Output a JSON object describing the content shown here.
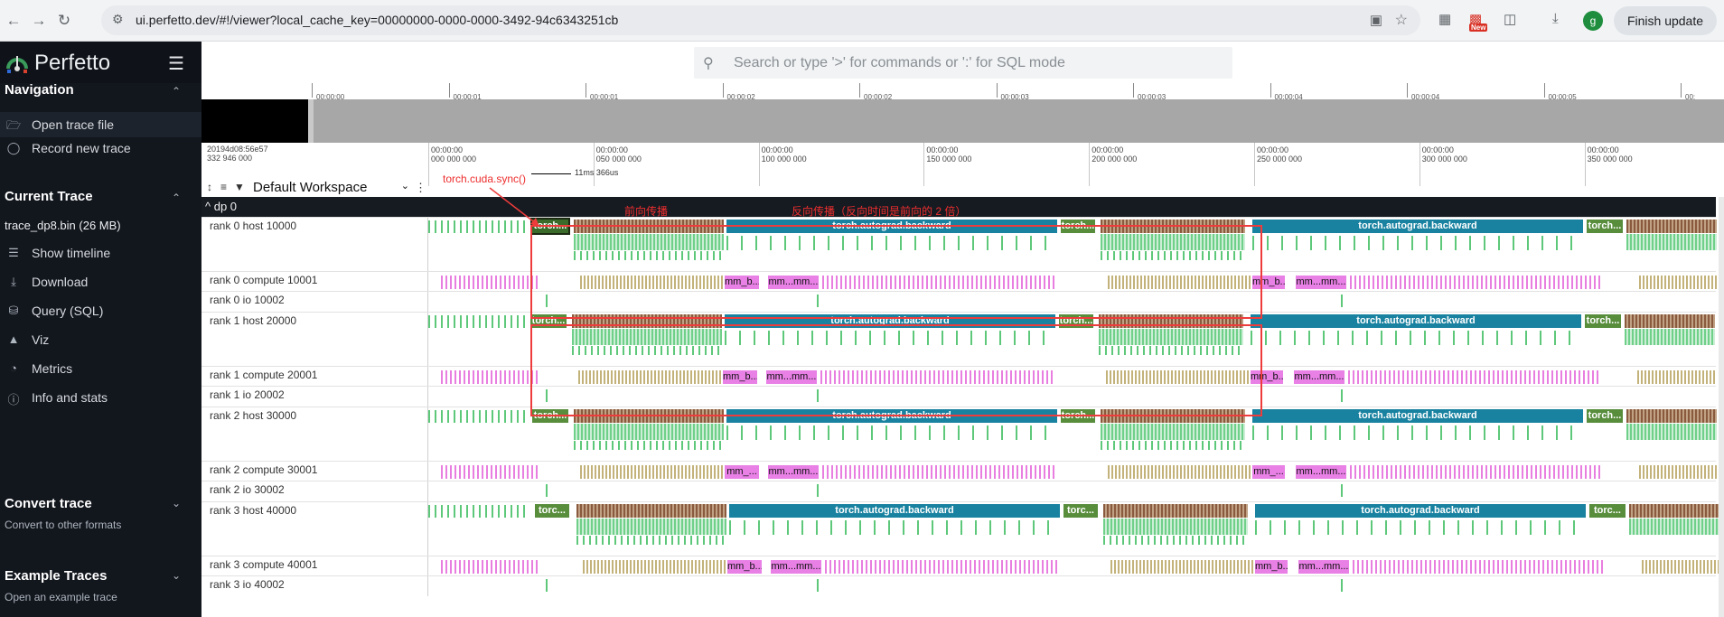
{
  "browser": {
    "url": "ui.perfetto.dev/#!/viewer?local_cache_key=00000000-0000-0000-3492-94c6343251cb",
    "new_badge": "New",
    "profile_initial": "g",
    "finish_update": "Finish update"
  },
  "sidebar": {
    "brand": "Perfetto",
    "navigation": {
      "title": "Navigation",
      "items": [
        {
          "label": "Open trace file",
          "icon": "folder-open-icon"
        },
        {
          "label": "Record new trace",
          "icon": "record-icon"
        }
      ]
    },
    "current_trace": {
      "title": "Current Trace",
      "trace_name": "trace_dp8.bin (26 MB)",
      "items": [
        {
          "label": "Show timeline",
          "icon": "timeline-icon"
        },
        {
          "label": "Download",
          "icon": "download-icon"
        },
        {
          "label": "Query (SQL)",
          "icon": "database-icon"
        },
        {
          "label": "Viz",
          "icon": "chart-icon"
        },
        {
          "label": "Metrics",
          "icon": "metrics-icon"
        },
        {
          "label": "Info and stats",
          "icon": "info-icon"
        }
      ]
    },
    "convert_trace": {
      "title": "Convert trace",
      "subtitle": "Convert to other formats"
    },
    "example_traces": {
      "title": "Example Traces",
      "subtitle": "Open an example trace"
    }
  },
  "search": {
    "placeholder": "Search or type '>' for commands or ':' for SQL mode"
  },
  "overview": {
    "ticks": [
      "00:00:00",
      "00:00:01",
      "00:00:01",
      "00:00:02",
      "00:00:02",
      "00:00:03",
      "00:00:03",
      "00:00:04",
      "00:00:04",
      "00:00:05",
      "00:"
    ]
  },
  "time_info": {
    "line1": "20194d08:56e57",
    "line2": "332 946 000"
  },
  "ruler": {
    "ticks": [
      {
        "l1": "00:00:00",
        "l2": "000 000 000"
      },
      {
        "l1": "00:00:00",
        "l2": "050 000 000"
      },
      {
        "l1": "00:00:00",
        "l2": "100 000 000"
      },
      {
        "l1": "00:00:00",
        "l2": "150 000 000"
      },
      {
        "l1": "00:00:00",
        "l2": "200 000 000"
      },
      {
        "l1": "00:00:00",
        "l2": "250 000 000"
      },
      {
        "l1": "00:00:00",
        "l2": "300 000 000"
      },
      {
        "l1": "00:00:00",
        "l2": "350 000 000"
      }
    ]
  },
  "workspace": {
    "label": "Default Workspace"
  },
  "measure": {
    "label": "11ms 366us"
  },
  "group": {
    "label": "^ dp 0"
  },
  "tracks": [
    {
      "name": "rank 0 host 10000",
      "kind": "host"
    },
    {
      "name": "rank 0 compute 10001",
      "kind": "compute"
    },
    {
      "name": "rank 0 io 10002",
      "kind": "io"
    },
    {
      "name": "rank 1 host 20000",
      "kind": "host"
    },
    {
      "name": "rank 1 compute 20001",
      "kind": "compute"
    },
    {
      "name": "rank 1 io 20002",
      "kind": "io"
    },
    {
      "name": "rank 2 host 30000",
      "kind": "host"
    },
    {
      "name": "rank 2 compute 30001",
      "kind": "compute"
    },
    {
      "name": "rank 2 io 30002",
      "kind": "io"
    },
    {
      "name": "rank 3 host 40000",
      "kind": "host"
    },
    {
      "name": "rank 3 compute 40001",
      "kind": "compute"
    },
    {
      "name": "rank 3 io 40002",
      "kind": "io"
    }
  ],
  "slices": {
    "torch_short": "torch...",
    "torch_short2": "torc...",
    "backward": "torch.autograd.backward",
    "mm_b": "mm_b...",
    "mm_mm": "mm...mm...",
    "mm_short": "mm_..."
  },
  "annotations": {
    "sync": "torch.cuda.sync()",
    "forward": "前向传播",
    "backward": "反向传播（反向时间是前向的 2 倍）"
  },
  "colors": {
    "sidebar_bg": "#12161d",
    "green_slice": "#588d3c",
    "teal_slice": "#1982a0",
    "pink_slice": "#e880e6",
    "annotation_red": "#ee3b3b"
  }
}
